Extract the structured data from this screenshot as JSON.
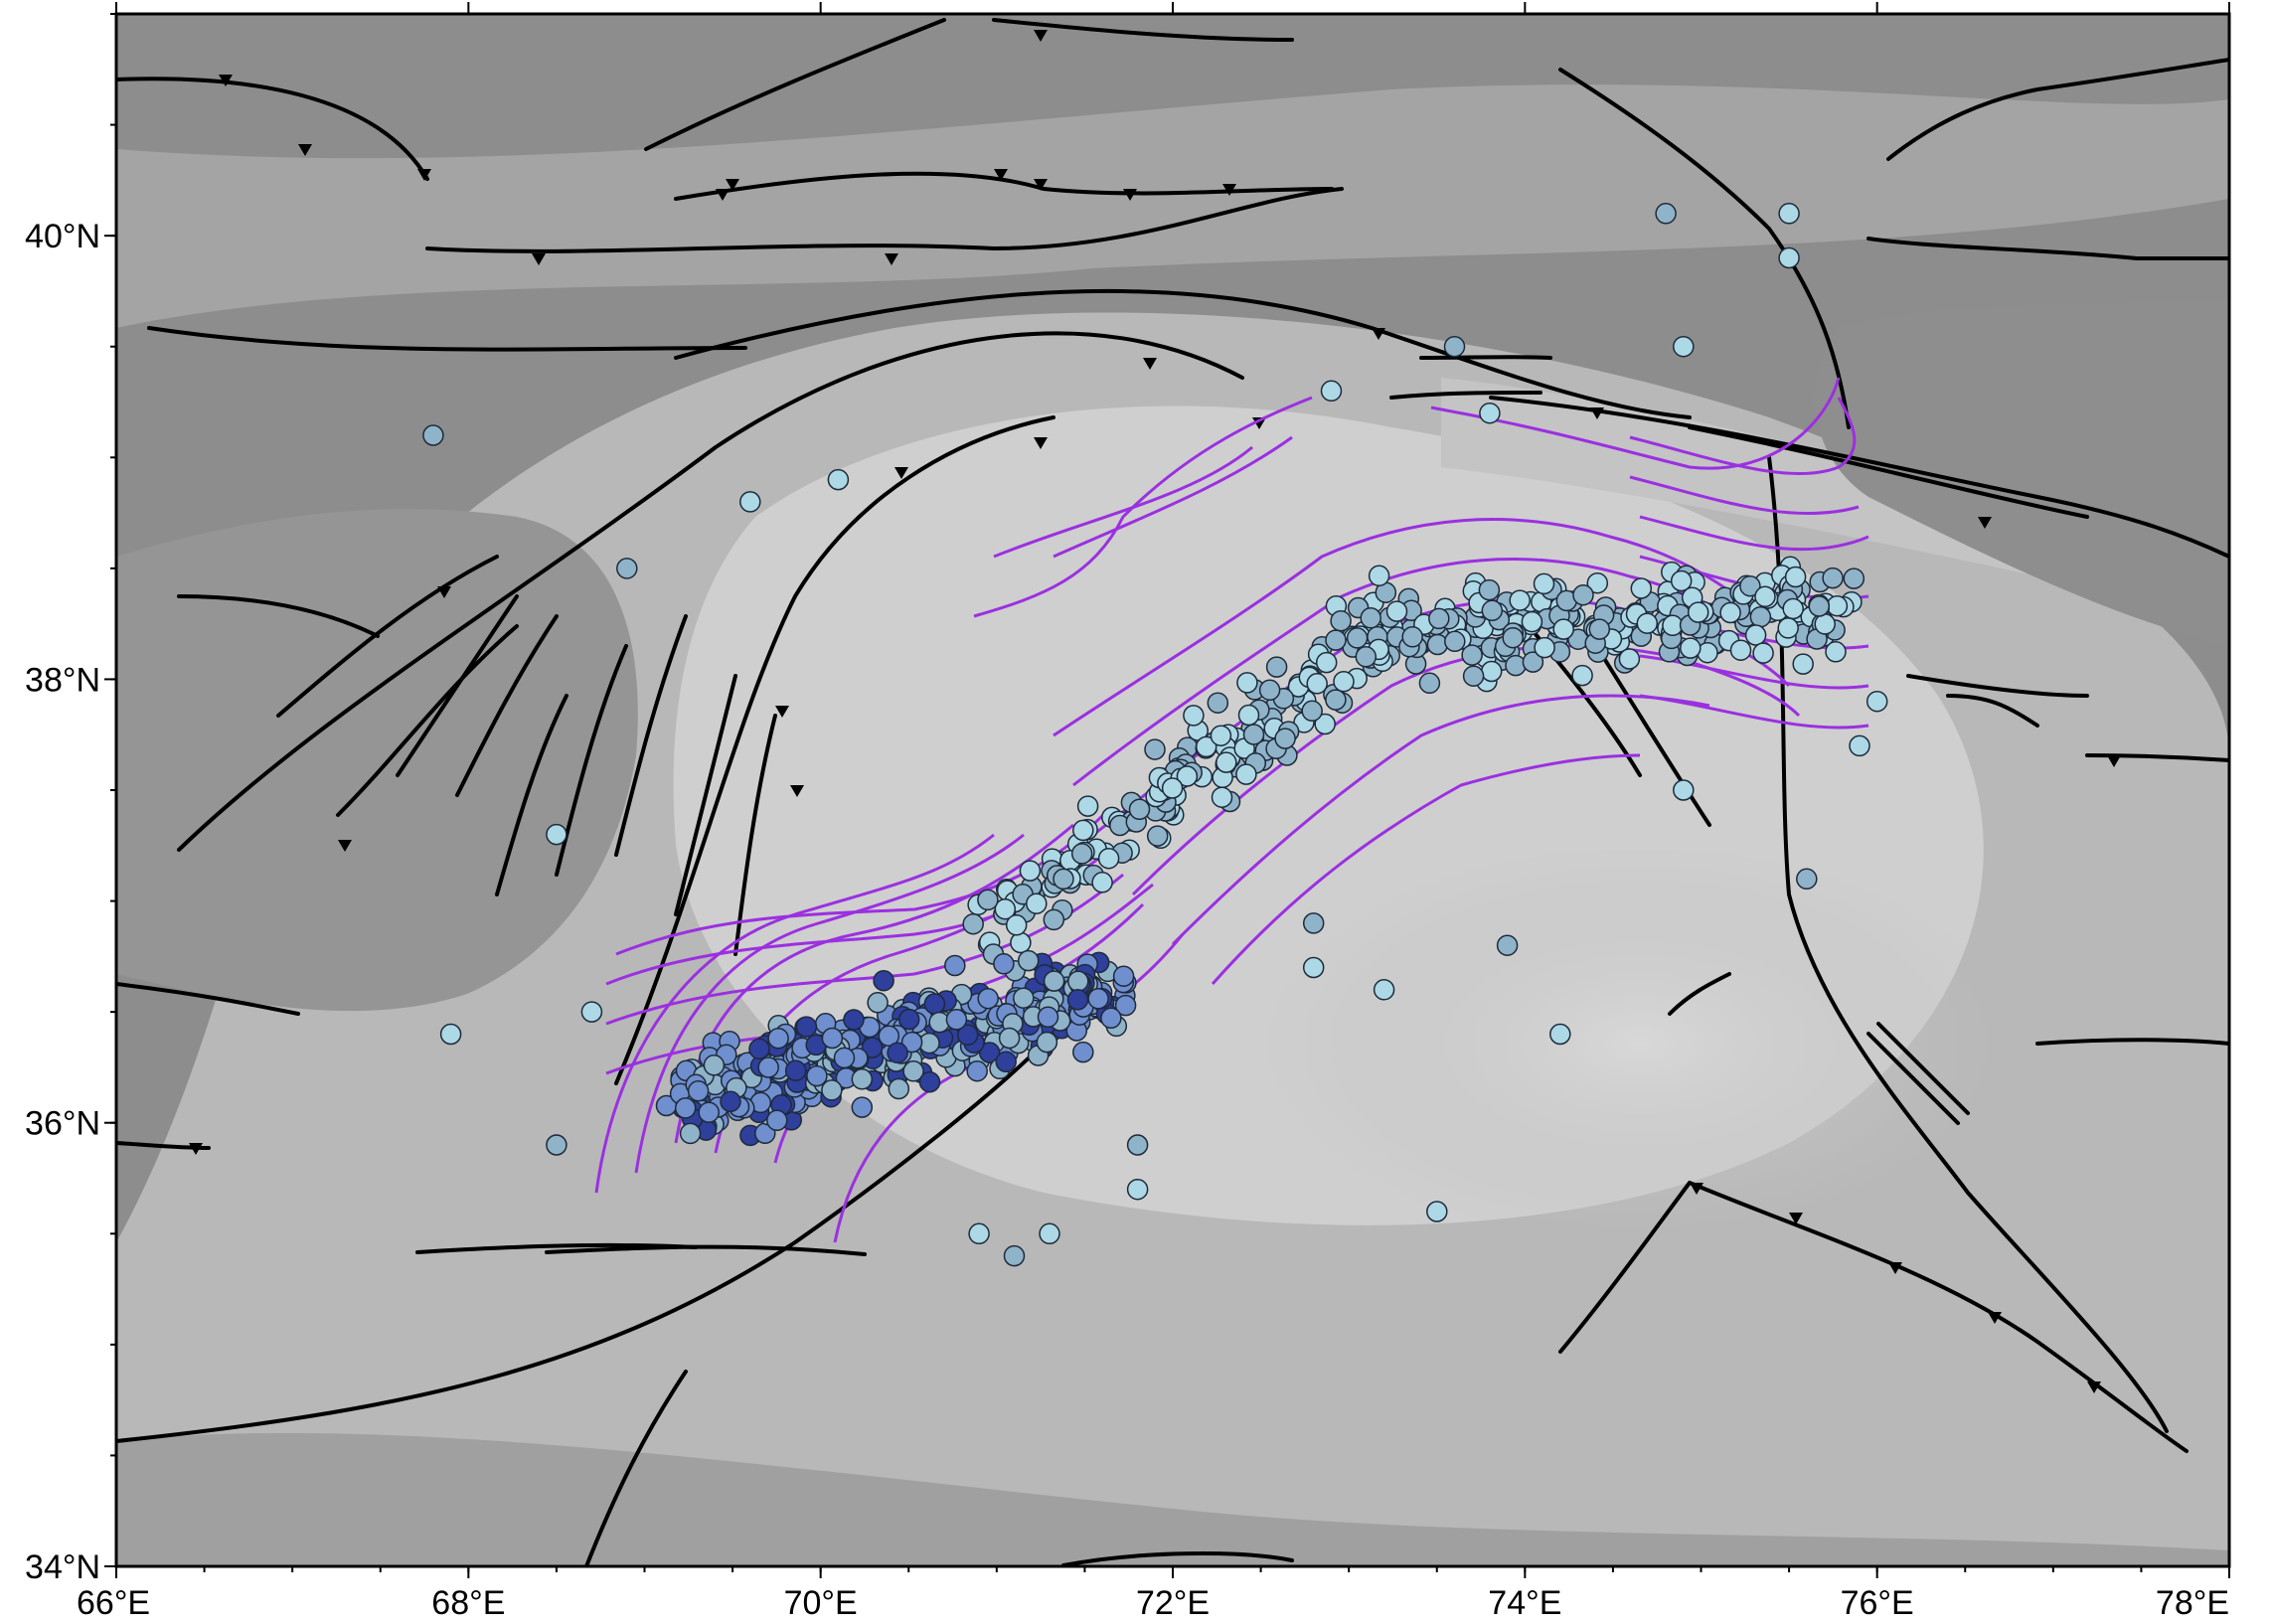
{
  "map": {
    "lon_range": [
      66,
      78
    ],
    "lat_range": [
      34,
      41
    ],
    "x_ticks": [
      {
        "value": 66,
        "label": "66°E"
      },
      {
        "value": 68,
        "label": "68°E"
      },
      {
        "value": 70,
        "label": "70°E"
      },
      {
        "value": 72,
        "label": "72°E"
      },
      {
        "value": 74,
        "label": "74°E"
      },
      {
        "value": 76,
        "label": "76°E"
      },
      {
        "value": 78,
        "label": "78°E"
      }
    ],
    "y_ticks": [
      {
        "value": 34,
        "label": "34°N"
      },
      {
        "value": 36,
        "label": "36°N"
      },
      {
        "value": 38,
        "label": "38°N"
      },
      {
        "value": 40,
        "label": "40°N"
      }
    ],
    "colors": {
      "lowland": "#8a8a8a",
      "highland": "#e6e6e6",
      "fault": "#000000",
      "contour": "#9b30e0",
      "quake_shallow": "#add8e6",
      "quake_mid": "#8fb3c8",
      "quake_deep": "#6f8fce",
      "quake_deepest": "#2f3f9c"
    }
  }
}
